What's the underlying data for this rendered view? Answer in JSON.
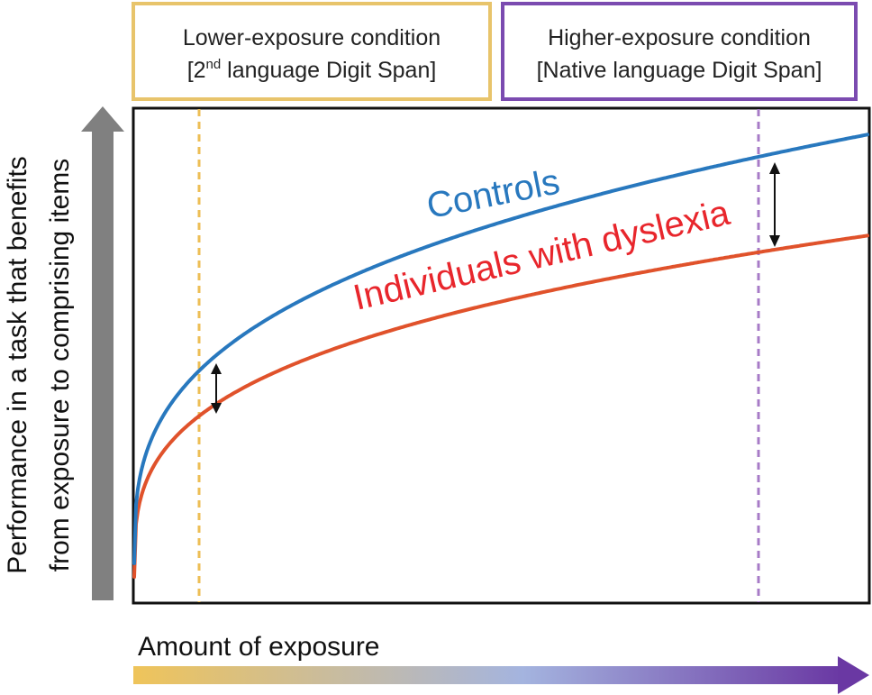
{
  "conditions": {
    "lower": {
      "line1": "Lower-exposure condition",
      "line2_before": "[2",
      "line2_sup": "nd",
      "line2_after": " language Digit Span]",
      "color": "#E8C46B",
      "marker_color": "#EDBE55"
    },
    "higher": {
      "line1": "Higher-exposure condition",
      "line2": "[Native language Digit Span]",
      "color": "#7B4BB0",
      "marker_color": "#A77BC7"
    }
  },
  "curves": {
    "controls": {
      "label": "Controls",
      "color": "#2878BE"
    },
    "dyslexia": {
      "label": "Individuals with dyslexia",
      "color": "#E0522B",
      "label_color": "#E8262C"
    }
  },
  "axes": {
    "y_label_line1": "Performance in a task that benefits",
    "y_label_line2": "from exposure to comprising items",
    "x_label": "Amount of exposure",
    "y_arrow_color": "#808080",
    "x_gradient": [
      "#EFC45A",
      "#A4B4DF",
      "#6A38A3"
    ]
  },
  "icons": {
    "gap_arrow": "double-headed-arrow-icon",
    "y_arrow": "up-arrow-icon",
    "x_arrow": "right-arrow-icon"
  }
}
